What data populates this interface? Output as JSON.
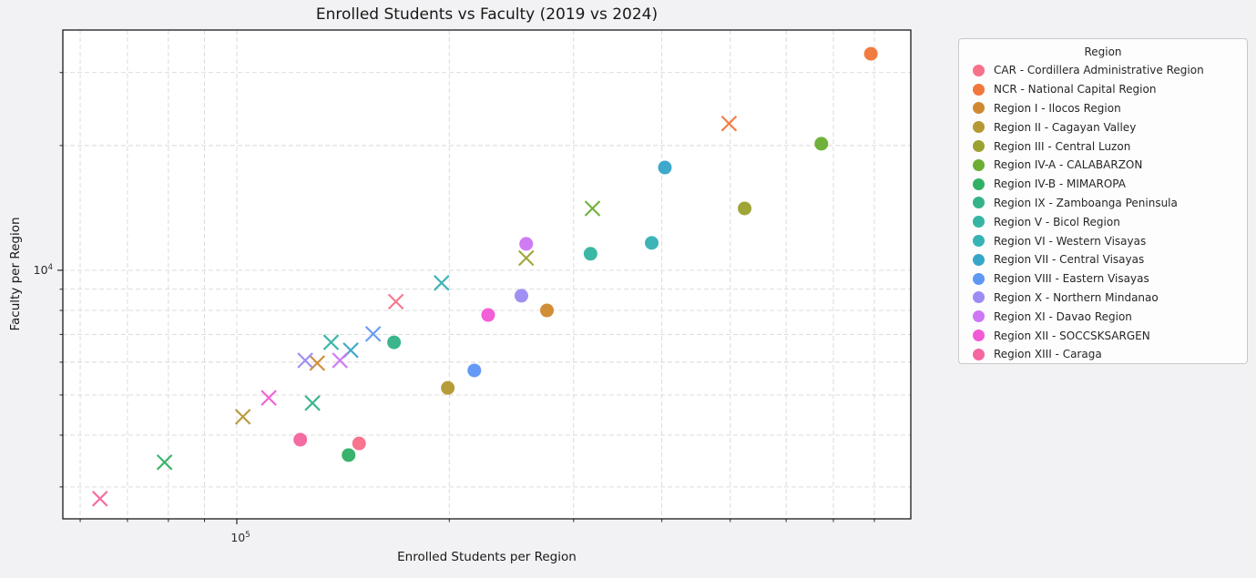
{
  "title": "Enrolled Students vs Faculty (2019 vs 2024)",
  "x_axis": {
    "label": "Enrolled Students per Region",
    "tick_base": "10",
    "tick_exp": "5"
  },
  "y_axis": {
    "label": "Faculty per Region",
    "tick_base": "10",
    "tick_exp": "4"
  },
  "legend": {
    "title": "Region"
  },
  "colors": {
    "figure_background": "#f2f2f4",
    "plot_background": "#ffffff",
    "grid": "#d8d8d8",
    "spine": "#1a1a1a",
    "tick": "#2a2a2a",
    "text": "#181818"
  },
  "chart_data": {
    "type": "scatter",
    "title": "Enrolled Students vs Faculty (2019 vs 2024)",
    "xlabel": "Enrolled Students per Region",
    "ylabel": "Faculty per Region",
    "x_scale": "log",
    "y_scale": "log",
    "xlim": [
      56700,
      901000
    ],
    "ylim": [
      2512,
      38000
    ],
    "x_major_ticks": [
      100000
    ],
    "x_minor_ticks": [
      60000,
      70000,
      80000,
      90000,
      200000,
      300000,
      400000,
      500000,
      600000,
      700000,
      800000
    ],
    "y_major_ticks": [
      10000
    ],
    "y_minor_ticks": [
      3000,
      4000,
      5000,
      6000,
      7000,
      8000,
      9000,
      20000,
      30000
    ],
    "grid": "dashed, major and minor, both axes",
    "legend_position": "upper right, outside plot",
    "markers": {
      "2019": "x",
      "2024": "circle"
    },
    "series": [
      {
        "slug": "car",
        "label": "CAR - Cordillera Administrative Region",
        "color": "#f77189",
        "y2019": {
          "students": 168000,
          "faculty": 8400
        },
        "y2024": {
          "students": 149000,
          "faculty": 3820
        }
      },
      {
        "slug": "ncr",
        "label": "NCR - National Capital Region",
        "color": "#f2773b",
        "y2019": {
          "students": 498000,
          "faculty": 22600
        },
        "y2024": {
          "students": 791000,
          "faculty": 33300
        }
      },
      {
        "slug": "region-i",
        "label": "Region I - Ilocos Region",
        "color": "#cf8a31",
        "y2019": {
          "students": 130000,
          "faculty": 5970
        },
        "y2024": {
          "students": 275000,
          "faculty": 8000
        }
      },
      {
        "slug": "region-ii",
        "label": "Region II - Cagayan Valley",
        "color": "#b59833",
        "y2019": {
          "students": 102000,
          "faculty": 4430
        },
        "y2024": {
          "students": 199000,
          "faculty": 5200
        }
      },
      {
        "slug": "region-iii",
        "label": "Region III - Central Luzon",
        "color": "#9ca231",
        "y2019": {
          "students": 257000,
          "faculty": 10700
        },
        "y2024": {
          "students": 524000,
          "faculty": 14100
        }
      },
      {
        "slug": "region-iv-a",
        "label": "Region IV-A - CALABARZON",
        "color": "#6bae33",
        "y2019": {
          "students": 319000,
          "faculty": 14100
        },
        "y2024": {
          "students": 673000,
          "faculty": 20200
        }
      },
      {
        "slug": "region-iv-b",
        "label": "Region IV-B - MIMAROPA",
        "color": "#32b166",
        "y2019": {
          "students": 79000,
          "faculty": 3440
        },
        "y2024": {
          "students": 144000,
          "faculty": 3580
        }
      },
      {
        "slug": "region-ix",
        "label": "Region IX - Zamboanga Peninsula",
        "color": "#35b388",
        "y2019": {
          "students": 128000,
          "faculty": 4780
        },
        "y2024": {
          "students": 167000,
          "faculty": 6700
        }
      },
      {
        "slug": "region-v",
        "label": "Region V - Bicol Region",
        "color": "#35b5a2",
        "y2019": {
          "students": 136000,
          "faculty": 6700
        },
        "y2024": {
          "students": 317000,
          "faculty": 10960
        }
      },
      {
        "slug": "region-vi",
        "label": "Region VI - Western Visayas",
        "color": "#37b2b5",
        "y2019": {
          "students": 195000,
          "faculty": 9320
        },
        "y2024": {
          "students": 387000,
          "faculty": 11640
        }
      },
      {
        "slug": "region-vii",
        "label": "Region VII - Central Visayas",
        "color": "#38a6c9",
        "y2019": {
          "students": 145000,
          "faculty": 6410
        },
        "y2024": {
          "students": 404000,
          "faculty": 17700
        }
      },
      {
        "slug": "region-viii",
        "label": "Region VIII - Eastern Visayas",
        "color": "#5f97f5",
        "y2019": {
          "students": 156000,
          "faculty": 7020
        },
        "y2024": {
          "students": 217000,
          "faculty": 5730
        }
      },
      {
        "slug": "region-x",
        "label": "Region X - Northern Mindanao",
        "color": "#9e8cf4",
        "y2019": {
          "students": 125000,
          "faculty": 6060
        },
        "y2024": {
          "students": 253000,
          "faculty": 8680
        }
      },
      {
        "slug": "region-xi",
        "label": "Region XI - Davao Region",
        "color": "#cd77f4",
        "y2019": {
          "students": 140000,
          "faculty": 6060
        },
        "y2024": {
          "students": 257000,
          "faculty": 11580
        }
      },
      {
        "slug": "region-xii",
        "label": "Region XII - SOCCSKSARGEN",
        "color": "#f25ad5",
        "y2019": {
          "students": 111000,
          "faculty": 4920
        },
        "y2024": {
          "students": 227000,
          "faculty": 7800
        }
      },
      {
        "slug": "region-xiii",
        "label": "Region XIII - Caraga",
        "color": "#f4679e",
        "y2019": {
          "students": 64000,
          "faculty": 2810
        },
        "y2024": {
          "students": 123000,
          "faculty": 3900
        }
      }
    ]
  }
}
